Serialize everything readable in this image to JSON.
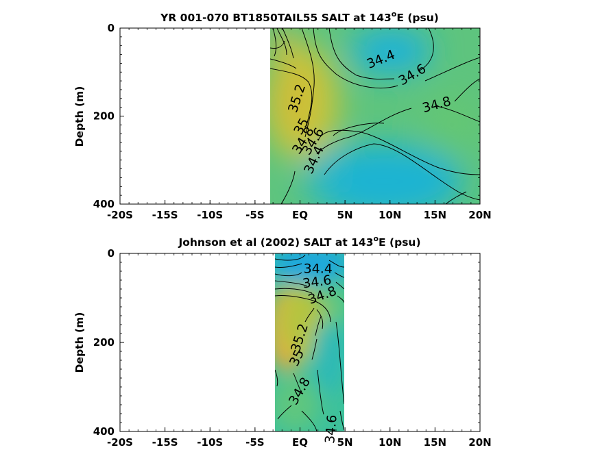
{
  "chart_data": [
    {
      "type": "heatmap",
      "title": "YR 001-070 BT1850TAIL55 SALT at 143°E (psu)",
      "title_main": "YR 001-070 BT1850TAIL55 SALT at 143",
      "title_sup": "o",
      "title_tail": "E (psu)",
      "ylabel": "Depth (m)",
      "xlabel": "",
      "x_ticks": [
        "-20S",
        "-15S",
        "-10S",
        "-5S",
        "EQ",
        "5N",
        "10N",
        "15N",
        "20N"
      ],
      "x_tick_values": [
        -20,
        -15,
        -10,
        -5,
        0,
        5,
        10,
        15,
        20
      ],
      "y_ticks": [
        "0",
        "200",
        "400"
      ],
      "y_tick_values": [
        0,
        200,
        400
      ],
      "xlim": [
        -20,
        20
      ],
      "ylim": [
        0,
        400
      ],
      "y_reversed": true,
      "data_extent_lat": [
        -3.3,
        20
      ],
      "contour_labels": [
        {
          "text": "34.4",
          "lat": 9.0,
          "depth": 72,
          "angle": -22
        },
        {
          "text": "34.6",
          "lat": 12.5,
          "depth": 107,
          "angle": -30
        },
        {
          "text": "34.8",
          "lat": 15.2,
          "depth": 175,
          "angle": -15
        },
        {
          "text": "35.2",
          "lat": -0.3,
          "depth": 160,
          "angle": -72
        },
        {
          "text": "35",
          "lat": 0.2,
          "depth": 224,
          "angle": -62
        },
        {
          "text": "34.8",
          "lat": 0.4,
          "depth": 256,
          "angle": -58
        },
        {
          "text": "34.6",
          "lat": 1.5,
          "depth": 258,
          "angle": -58
        },
        {
          "text": "34.4",
          "lat": 1.6,
          "depth": 300,
          "angle": -65
        }
      ],
      "colorscale": [
        "#1fa6e0",
        "#16b9c8",
        "#2ac1a8",
        "#5bc885",
        "#8dc95d",
        "#b8c43a",
        "#e2b83a",
        "#f5a93d"
      ]
    },
    {
      "type": "heatmap",
      "title": "Johnson et al (2002) SALT at 143°E (psu)",
      "title_main": "Johnson et al (2002) SALT at 143",
      "title_sup": "o",
      "title_tail": "E (psu)",
      "ylabel": "Depth (m)",
      "xlabel": "",
      "x_ticks": [
        "-20S",
        "-15S",
        "-10S",
        "-5S",
        "EQ",
        "5N",
        "10N",
        "15N",
        "20N"
      ],
      "x_tick_values": [
        -20,
        -15,
        -10,
        -5,
        0,
        5,
        10,
        15,
        20
      ],
      "y_ticks": [
        "0",
        "200",
        "400"
      ],
      "y_tick_values": [
        0,
        200,
        400
      ],
      "xlim": [
        -20,
        20
      ],
      "ylim": [
        0,
        400
      ],
      "y_reversed": true,
      "data_extent_lat": [
        -2.8,
        5
      ],
      "contour_labels": [
        {
          "text": "34.4",
          "lat": 2.0,
          "depth": 35,
          "angle": 0
        },
        {
          "text": "34.6",
          "lat": 1.9,
          "depth": 65,
          "angle": -8
        },
        {
          "text": "34.8",
          "lat": 2.5,
          "depth": 95,
          "angle": -20
        },
        {
          "text": "35.2",
          "lat": 0.0,
          "depth": 190,
          "angle": -72
        },
        {
          "text": "35",
          "lat": -0.3,
          "depth": 235,
          "angle": -65
        },
        {
          "text": "34.8",
          "lat": 0.0,
          "depth": 310,
          "angle": -60
        },
        {
          "text": "34.6",
          "lat": 3.5,
          "depth": 395,
          "angle": -85
        }
      ],
      "colorscale": [
        "#1fa6e0",
        "#16b9c8",
        "#2ac1a8",
        "#5bc885",
        "#8dc95d",
        "#b8c43a",
        "#e2b83a",
        "#f5a93d"
      ]
    }
  ]
}
